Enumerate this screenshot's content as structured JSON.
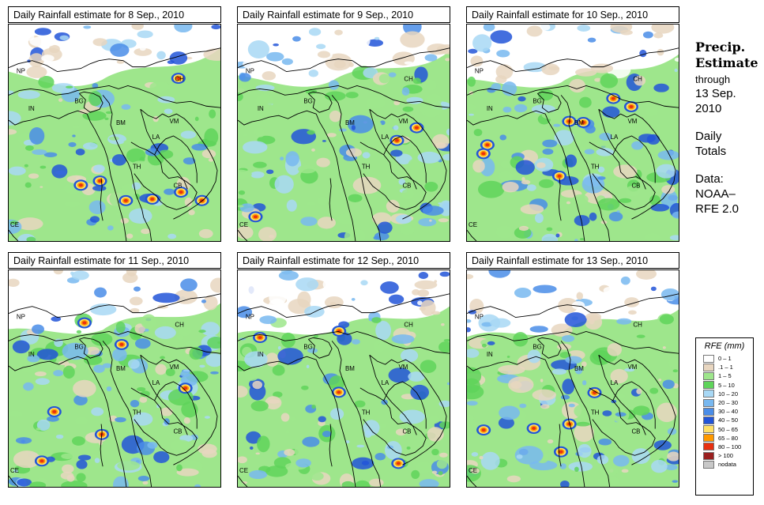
{
  "panels": [
    {
      "title": "Daily Rainfall estimate for  8 Sep., 2010",
      "seed": 11,
      "wet": 0.9
    },
    {
      "title": "Daily Rainfall estimate for  9 Sep., 2010",
      "seed": 23,
      "wet": 1.0
    },
    {
      "title": "Daily Rainfall estimate for  10 Sep., 2010",
      "seed": 37,
      "wet": 1.05
    },
    {
      "title": "Daily Rainfall estimate for  11 Sep., 2010",
      "seed": 41,
      "wet": 1.15
    },
    {
      "title": "Daily Rainfall estimate for  12 Sep., 2010",
      "seed": 53,
      "wet": 1.0
    },
    {
      "title": "Daily Rainfall estimate for  13 Sep., 2010",
      "seed": 67,
      "wet": 1.1
    }
  ],
  "map_labels": [
    "NP",
    "CH",
    "IN",
    "BG",
    "BM",
    "VM",
    "LA",
    "TH",
    "CB",
    "CE"
  ],
  "side": {
    "title_line1": "Precip.",
    "title_line2": "Estimate",
    "through": "through",
    "date_line1": "13 Sep.",
    "date_line2": "2010",
    "daily_line1": "Daily",
    "daily_line2": "Totals",
    "data_line1": "Data:",
    "data_line2": "NOAA–",
    "data_line3": "RFE 2.0"
  },
  "legend": {
    "title": "RFE (mm)",
    "items": [
      {
        "label": "0 – 1",
        "color": "#ffffff"
      },
      {
        "label": ".1 – 1",
        "color": "#e8d6c0"
      },
      {
        "label": "1 – 5",
        "color": "#9ee68c"
      },
      {
        "label": "5 – 10",
        "color": "#5fd45a"
      },
      {
        "label": "10 – 20",
        "color": "#a8d8f5"
      },
      {
        "label": "20 – 30",
        "color": "#78b8f0"
      },
      {
        "label": "30 – 40",
        "color": "#4a8de8"
      },
      {
        "label": "40 – 50",
        "color": "#2255d8"
      },
      {
        "label": "50 – 65",
        "color": "#ffe066"
      },
      {
        "label": "65 – 80",
        "color": "#ff9900"
      },
      {
        "label": "80 – 100",
        "color": "#e83010"
      },
      {
        "label": "> 100",
        "color": "#9a2020"
      },
      {
        "label": "nodata",
        "color": "#c8c8c8"
      }
    ]
  }
}
